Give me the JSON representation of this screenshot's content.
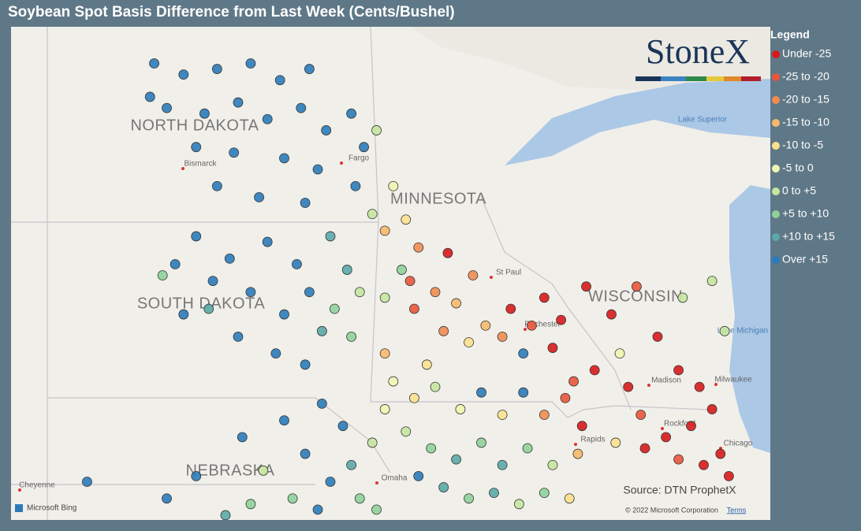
{
  "title": "Soybean Spot Basis Difference from Last Week (Cents/Bushel)",
  "map": {
    "states": [
      "NORTH DAKOTA",
      "SOUTH DAKOTA",
      "MINNESOTA",
      "WISCONSIN",
      "NEBRASKA"
    ],
    "cities": [
      "Bismarck",
      "Fargo",
      "St Paul",
      "Rochester",
      "Madison",
      "Milwaukee",
      "Rockford",
      "Chicago",
      "Cheyenne",
      "Omaha",
      "Rapids"
    ],
    "lakes": [
      "Lake Superior",
      "Lake Michigan"
    ],
    "logo": "StoneX",
    "source": "Source: DTN ProphetX",
    "copyright": "© 2022 Microsoft Corporation",
    "terms": "Terms",
    "provider": "Microsoft Bing"
  },
  "legend": {
    "title": "Legend",
    "items": [
      {
        "label": "Under -25",
        "color": "#d7191c"
      },
      {
        "label": "-25 to -20",
        "color": "#e8553b"
      },
      {
        "label": "-20 to -15",
        "color": "#f08c52"
      },
      {
        "label": "-15 to -10",
        "color": "#f7b86c"
      },
      {
        "label": "-10 to -5",
        "color": "#fbe08f"
      },
      {
        "label": "-5 to 0",
        "color": "#f0f5b0"
      },
      {
        "label": "0 to +5",
        "color": "#c5e6a0"
      },
      {
        "label": "+5 to +10",
        "color": "#8fd19a"
      },
      {
        "label": "+10 to +15",
        "color": "#5aa8a8"
      },
      {
        "label": "Over +15",
        "color": "#2b7bba"
      }
    ]
  },
  "points": [
    [
      -101.5,
      48.7,
      9
    ],
    [
      -100.8,
      48.5,
      9
    ],
    [
      -100,
      48.6,
      9
    ],
    [
      -99.2,
      48.7,
      9
    ],
    [
      -98.5,
      48.4,
      9
    ],
    [
      -97.8,
      48.6,
      9
    ],
    [
      -101.2,
      47.9,
      9
    ],
    [
      -100.3,
      47.8,
      9
    ],
    [
      -99.5,
      48,
      9
    ],
    [
      -98.8,
      47.7,
      9
    ],
    [
      -98,
      47.9,
      9
    ],
    [
      -97.4,
      47.5,
      9
    ],
    [
      -100.5,
      47.2,
      9
    ],
    [
      -99.6,
      47.1,
      9
    ],
    [
      -98.4,
      47,
      9
    ],
    [
      -97.6,
      46.8,
      9
    ],
    [
      -100,
      46.5,
      9
    ],
    [
      -99,
      46.3,
      9
    ],
    [
      -97.9,
      46.2,
      9
    ],
    [
      -101.6,
      48.1,
      9
    ],
    [
      -100.5,
      45.6,
      9
    ],
    [
      -99.7,
      45.2,
      9
    ],
    [
      -98.8,
      45.5,
      9
    ],
    [
      -98.1,
      45.1,
      9
    ],
    [
      -99.2,
      44.6,
      9
    ],
    [
      -98.4,
      44.2,
      9
    ],
    [
      -100.1,
      44.8,
      9
    ],
    [
      -97.8,
      44.6,
      9
    ],
    [
      -99.5,
      43.8,
      9
    ],
    [
      -98.6,
      43.5,
      9
    ],
    [
      -97.9,
      43.3,
      9
    ],
    [
      -100.8,
      44.2,
      9
    ],
    [
      -101,
      45.1,
      9
    ],
    [
      -97.3,
      45.6,
      8
    ],
    [
      -96.9,
      45,
      8
    ],
    [
      -97.2,
      44.3,
      7
    ],
    [
      -96.8,
      43.8,
      7
    ],
    [
      -97.5,
      43.9,
      8
    ],
    [
      -96.6,
      44.6,
      6
    ],
    [
      -100.2,
      44.3,
      8
    ],
    [
      -101.3,
      44.9,
      7
    ],
    [
      -96.8,
      47.8,
      9
    ],
    [
      -96.5,
      47.2,
      9
    ],
    [
      -96.7,
      46.5,
      9
    ],
    [
      -96.3,
      46.0,
      6
    ],
    [
      -96,
      45.7,
      3
    ],
    [
      -95.5,
      45.9,
      4
    ],
    [
      -95.2,
      45.4,
      2
    ],
    [
      -95.6,
      45.0,
      7
    ],
    [
      -96,
      44.5,
      6
    ],
    [
      -95.3,
      44.3,
      1
    ],
    [
      -94.8,
      44.6,
      2
    ],
    [
      -94.3,
      44.4,
      3
    ],
    [
      -94.6,
      43.9,
      2
    ],
    [
      -94,
      43.7,
      4
    ],
    [
      -93.6,
      44.0,
      3
    ],
    [
      -95.4,
      44.8,
      1
    ],
    [
      -94.5,
      45.3,
      0
    ],
    [
      -93.9,
      44.9,
      2
    ],
    [
      -96.2,
      47.5,
      6
    ],
    [
      -95.8,
      46.5,
      5
    ],
    [
      -93.0,
      44.3,
      0
    ],
    [
      -92.5,
      44.0,
      1
    ],
    [
      -92.2,
      44.5,
      0
    ],
    [
      -91.8,
      44.1,
      0
    ],
    [
      -91.2,
      44.7,
      0
    ],
    [
      -90.6,
      44.2,
      0
    ],
    [
      -90,
      44.7,
      1
    ],
    [
      -89.5,
      43.8,
      0
    ],
    [
      -89.0,
      43.2,
      0
    ],
    [
      -88.5,
      42.9,
      0
    ],
    [
      -88.2,
      42.5,
      0
    ],
    [
      -88.7,
      42.2,
      0
    ],
    [
      -89.3,
      42.0,
      0
    ],
    [
      -89.8,
      41.8,
      0
    ],
    [
      -88.0,
      41.7,
      0
    ],
    [
      -87.8,
      41.3,
      0
    ],
    [
      -88.4,
      41.5,
      0
    ],
    [
      -89.0,
      41.6,
      1
    ],
    [
      -90.2,
      42.9,
      0
    ],
    [
      -91.0,
      43.2,
      0
    ],
    [
      -91.5,
      43.0,
      1
    ],
    [
      -92.0,
      43.6,
      0
    ],
    [
      -92.7,
      43.5,
      9
    ],
    [
      -93.2,
      43.8,
      2
    ],
    [
      -88.9,
      44.5,
      6
    ],
    [
      -88.2,
      44.8,
      6
    ],
    [
      -87.9,
      43.9,
      6
    ],
    [
      -90.4,
      43.5,
      5
    ],
    [
      -89.9,
      42.4,
      1
    ],
    [
      -90.5,
      41.9,
      4
    ],
    [
      -95.8,
      43.0,
      5
    ],
    [
      -95.3,
      42.7,
      4
    ],
    [
      -94.8,
      42.9,
      6
    ],
    [
      -94.2,
      42.5,
      5
    ],
    [
      -93.7,
      42.8,
      9
    ],
    [
      -93.2,
      42.4,
      4
    ],
    [
      -92.7,
      42.8,
      9
    ],
    [
      -92.2,
      42.4,
      2
    ],
    [
      -91.7,
      42.7,
      1
    ],
    [
      -91.3,
      42.2,
      0
    ],
    [
      -95.5,
      42.1,
      6
    ],
    [
      -94.9,
      41.8,
      7
    ],
    [
      -94.3,
      41.6,
      8
    ],
    [
      -93.7,
      41.9,
      7
    ],
    [
      -93.2,
      41.5,
      8
    ],
    [
      -92.6,
      41.8,
      7
    ],
    [
      -92.0,
      41.5,
      6
    ],
    [
      -91.4,
      41.7,
      3
    ],
    [
      -95.2,
      41.3,
      9
    ],
    [
      -94.6,
      41.1,
      8
    ],
    [
      -94.0,
      40.9,
      7
    ],
    [
      -93.4,
      41.0,
      8
    ],
    [
      -92.8,
      40.8,
      6
    ],
    [
      -92.2,
      41.0,
      7
    ],
    [
      -91.6,
      40.9,
      4
    ],
    [
      -96,
      42.5,
      5
    ],
    [
      -96.3,
      41.9,
      6
    ],
    [
      -96.0,
      43.5,
      3
    ],
    [
      -95.0,
      43.3,
      4
    ],
    [
      -97.5,
      42.6,
      9
    ],
    [
      -97.0,
      42.2,
      9
    ],
    [
      -96.8,
      41.5,
      8
    ],
    [
      -97.3,
      41.2,
      9
    ],
    [
      -97.9,
      41.7,
      9
    ],
    [
      -98.4,
      42.3,
      9
    ],
    [
      -98.9,
      41.4,
      6
    ],
    [
      -99.4,
      42.0,
      9
    ],
    [
      -96.6,
      40.9,
      7
    ],
    [
      -97.6,
      40.7,
      9
    ],
    [
      -98.2,
      40.9,
      7
    ],
    [
      -99.2,
      40.8,
      7
    ],
    [
      -100.5,
      41.3,
      9
    ],
    [
      -101.2,
      40.9,
      9
    ],
    [
      -103.1,
      41.2,
      9
    ],
    [
      -99.8,
      40.6,
      8
    ],
    [
      -96.2,
      40.7,
      7
    ]
  ]
}
